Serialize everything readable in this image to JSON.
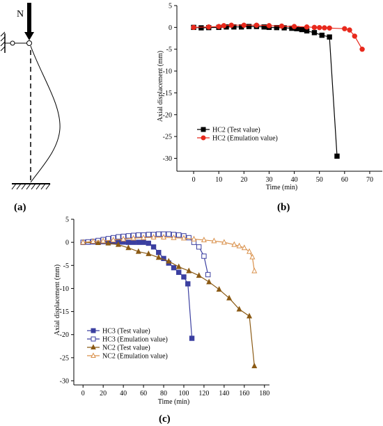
{
  "panel_labels": {
    "a": "(a)",
    "b": "(b)",
    "c": "(c)"
  },
  "column_diagram": {
    "load_label": "N"
  },
  "colors": {
    "black": "#000000",
    "red": "#e8291c",
    "blue": "#3b3fa0",
    "brown": "#8b5a14",
    "orange": "#d9904a"
  },
  "chart_data": [
    {
      "id": "b",
      "type": "line",
      "xlabel": "Time (min)",
      "ylabel": "Axial displacement (mm)",
      "xlim": [
        -5,
        75
      ],
      "ylim": [
        -32,
        5
      ],
      "xticks": [
        0,
        10,
        20,
        30,
        40,
        50,
        60,
        70
      ],
      "yticks": [
        5,
        0,
        -5,
        -10,
        -15,
        -20,
        -25,
        -30
      ],
      "legend_position": "lower-left",
      "series": [
        {
          "name": "HC2 (Test value)",
          "color": "#000000",
          "marker": "square",
          "fill": "solid",
          "x": [
            0,
            3,
            6,
            10,
            13,
            16,
            19,
            22,
            25,
            28,
            30,
            33,
            36,
            39,
            41,
            43,
            45,
            48,
            51,
            54,
            57
          ],
          "y": [
            0,
            -0.1,
            -0.05,
            0,
            0.1,
            0.1,
            0.1,
            0.2,
            0.2,
            0.1,
            0.0,
            -0.05,
            -0.1,
            -0.2,
            -0.3,
            -0.5,
            -0.8,
            -1.2,
            -1.8,
            -2.2,
            -29.5
          ]
        },
        {
          "name": "HC2 (Emulation value)",
          "color": "#e8291c",
          "marker": "circle",
          "fill": "solid",
          "x": [
            0,
            6,
            10,
            12,
            15,
            20,
            25,
            30,
            35,
            40,
            45,
            48,
            50,
            52,
            54,
            60,
            62,
            64,
            67
          ],
          "y": [
            0,
            0.1,
            0.2,
            0.4,
            0.5,
            0.5,
            0.5,
            0.4,
            0.3,
            0.2,
            0.1,
            0,
            -0.05,
            -0.1,
            -0.15,
            -0.3,
            -0.6,
            -2.0,
            -5.0
          ]
        }
      ]
    },
    {
      "id": "c",
      "type": "line",
      "xlabel": "Time (min)",
      "ylabel": "Axial displacement (mm)",
      "xlim": [
        -5,
        185
      ],
      "ylim": [
        -30,
        5
      ],
      "xticks": [
        0,
        20,
        40,
        60,
        80,
        100,
        120,
        140,
        160,
        180
      ],
      "yticks": [
        5,
        0,
        -5,
        -10,
        -15,
        -20,
        -25,
        -30
      ],
      "legend_position": "lower-left",
      "series": [
        {
          "name": "HC3 (Test value)",
          "color": "#3b3fa0",
          "marker": "square",
          "fill": "solid",
          "x": [
            0,
            5,
            10,
            15,
            20,
            25,
            30,
            35,
            40,
            45,
            50,
            55,
            60,
            65,
            70,
            75,
            80,
            85,
            90,
            95,
            100,
            104,
            108
          ],
          "y": [
            0,
            0.05,
            0.1,
            0.1,
            0.15,
            0.1,
            0.1,
            0.1,
            0.05,
            0,
            0,
            0,
            0,
            -0.2,
            -1.0,
            -2.2,
            -3.5,
            -4.5,
            -5.5,
            -6.5,
            -7.5,
            -9.0,
            -20.8
          ]
        },
        {
          "name": "HC3 (Emulation value)",
          "color": "#3b3fa0",
          "marker": "square",
          "fill": "open",
          "x": [
            0,
            5,
            10,
            15,
            20,
            25,
            30,
            35,
            40,
            45,
            50,
            55,
            60,
            65,
            70,
            75,
            80,
            85,
            90,
            95,
            100,
            105,
            110,
            115,
            120,
            124
          ],
          "y": [
            0,
            0.1,
            0.2,
            0.4,
            0.6,
            0.8,
            1.0,
            1.2,
            1.3,
            1.4,
            1.5,
            1.6,
            1.6,
            1.7,
            1.7,
            1.8,
            1.8,
            1.8,
            1.7,
            1.6,
            1.4,
            1.0,
            0,
            -1.0,
            -3.0,
            -7.0
          ]
        },
        {
          "name": "NC2 (Test value)",
          "color": "#8b5a14",
          "marker": "triangle",
          "fill": "solid",
          "x": [
            0,
            15,
            25,
            35,
            45,
            55,
            65,
            75,
            85,
            95,
            105,
            115,
            125,
            135,
            145,
            155,
            165,
            170
          ],
          "y": [
            0,
            -0.1,
            -0.2,
            -0.5,
            -1.2,
            -2.0,
            -2.5,
            -3.3,
            -4.1,
            -5.3,
            -6.2,
            -7.2,
            -8.6,
            -10.2,
            -12.1,
            -14.5,
            -16.0,
            -26.8
          ]
        },
        {
          "name": "NC2 (Emulation value)",
          "color": "#d9904a",
          "marker": "triangle",
          "fill": "open",
          "x": [
            0,
            10,
            20,
            30,
            40,
            50,
            60,
            70,
            80,
            90,
            100,
            110,
            120,
            130,
            140,
            150,
            155,
            160,
            165,
            168,
            170
          ],
          "y": [
            0,
            0.2,
            0.3,
            0.5,
            0.7,
            0.9,
            1.0,
            1.1,
            1.1,
            1.0,
            0.9,
            0.7,
            0.5,
            0.3,
            0,
            -0.5,
            -0.8,
            -1.2,
            -2.0,
            -3.2,
            -6.2
          ]
        }
      ]
    }
  ]
}
